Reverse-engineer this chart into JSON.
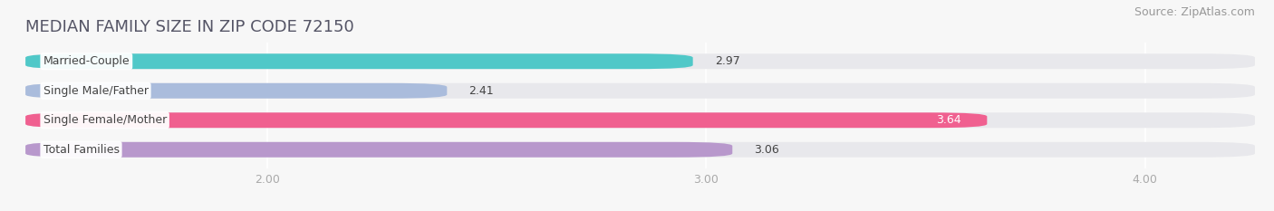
{
  "title": "MEDIAN FAMILY SIZE IN ZIP CODE 72150",
  "source": "Source: ZipAtlas.com",
  "categories": [
    "Married-Couple",
    "Single Male/Father",
    "Single Female/Mother",
    "Total Families"
  ],
  "values": [
    2.97,
    2.41,
    3.64,
    3.06
  ],
  "bar_colors": [
    "#50c8c8",
    "#aabcdc",
    "#f06090",
    "#b898cc"
  ],
  "bar_bg_color": "#e8e8ec",
  "label_text_color": "#444444",
  "value_text_colors": [
    "#444444",
    "#444444",
    "#ffffff",
    "#444444"
  ],
  "xlim": [
    1.45,
    4.25
  ],
  "xticks": [
    2.0,
    3.0,
    4.0
  ],
  "xtick_labels": [
    "2.00",
    "3.00",
    "4.00"
  ],
  "background_color": "#f7f7f7",
  "title_fontsize": 13,
  "source_fontsize": 9,
  "bar_label_fontsize": 9,
  "value_fontsize": 9,
  "tick_fontsize": 9,
  "bar_height": 0.52
}
